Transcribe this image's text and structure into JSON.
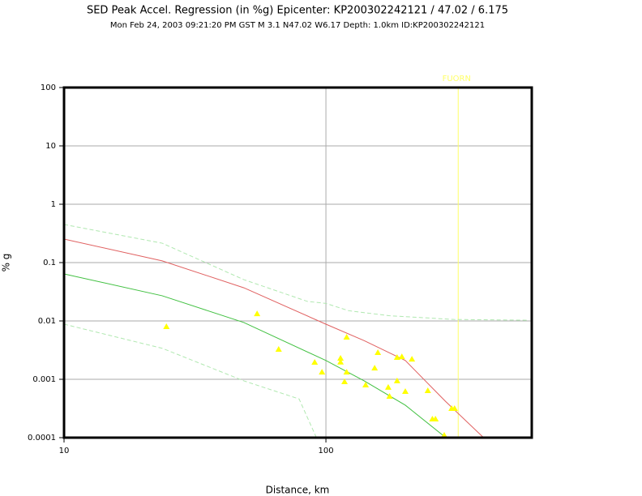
{
  "chart_data": {
    "type": "scatter",
    "title": "SED Peak Accel. Regression (in %g) Epicenter: KP200302242121 / 47.02 / 6.175",
    "subtitle": "Mon Feb 24, 2003 09:21:20 PM GST   M 3.1   N47.02 W6.17   Depth: 1.0km   ID:KP200302242121",
    "x_label": "Distance, km",
    "y_label": "% g",
    "x_scale": "log",
    "y_scale": "log",
    "xlim": [
      10,
      611
    ],
    "ylim": [
      0.0001,
      100
    ],
    "xticks": [
      10,
      100
    ],
    "yticks": [
      100,
      10,
      1,
      0.1,
      0.01,
      0.001,
      0.0001
    ],
    "grid": true,
    "series": [
      {
        "type": "scatter",
        "color": "#ffff00",
        "x": [
          24.6,
          54.6,
          66,
          90.6,
          96.6,
          113.7,
          113.7,
          120,
          120,
          117.8,
          141.8,
          153.5,
          157.9,
          173,
          175,
          187,
          195,
          187,
          201,
          213,
          245,
          255,
          262,
          283,
          302,
          310
        ],
        "values": [
          0.008,
          0.0133,
          0.00327,
          0.00196,
          0.00133,
          0.0023,
          0.00197,
          0.00527,
          0.00133,
          0.00091,
          0.0008,
          0.00156,
          0.00287,
          0.00073,
          0.00051,
          0.00237,
          0.00244,
          0.00094,
          0.00062,
          0.00222,
          0.00064,
          0.000209,
          0.000209,
          0.00011,
          0.000316,
          0.000316
        ]
      },
      {
        "type": "line",
        "color": "#e06060",
        "dash": "solid",
        "x": [
          10,
          23.7,
          48.6,
          100,
          140,
          201,
          286,
          400
        ],
        "values": [
          0.253,
          0.107,
          0.037,
          0.0088,
          0.0046,
          0.0021,
          0.00042,
          0.0001
        ]
      },
      {
        "type": "line",
        "color": "#40c040",
        "dash": "solid",
        "x": [
          10,
          23.7,
          48.6,
          100,
          140,
          201,
          287
        ],
        "values": [
          0.064,
          0.027,
          0.0094,
          0.0021,
          0.00094,
          0.00036,
          0.0001
        ]
      },
      {
        "type": "line",
        "color": "#b0e8b0",
        "dash": "dashed",
        "x": [
          10,
          23.7,
          48.6,
          85,
          100,
          122,
          174,
          308,
          585
        ],
        "values": [
          0.45,
          0.215,
          0.051,
          0.0216,
          0.02,
          0.015,
          0.0123,
          0.0106,
          0.0103
        ]
      },
      {
        "type": "line",
        "color": "#b0e8b0",
        "dash": "dashed",
        "x": [
          10,
          23.7,
          48.6,
          79,
          92
        ],
        "values": [
          0.0088,
          0.0034,
          0.00094,
          0.00046,
          0.0001
        ]
      }
    ],
    "markers": [
      {
        "label": "FUORN",
        "x": 320,
        "color": "#ffff66"
      }
    ]
  }
}
